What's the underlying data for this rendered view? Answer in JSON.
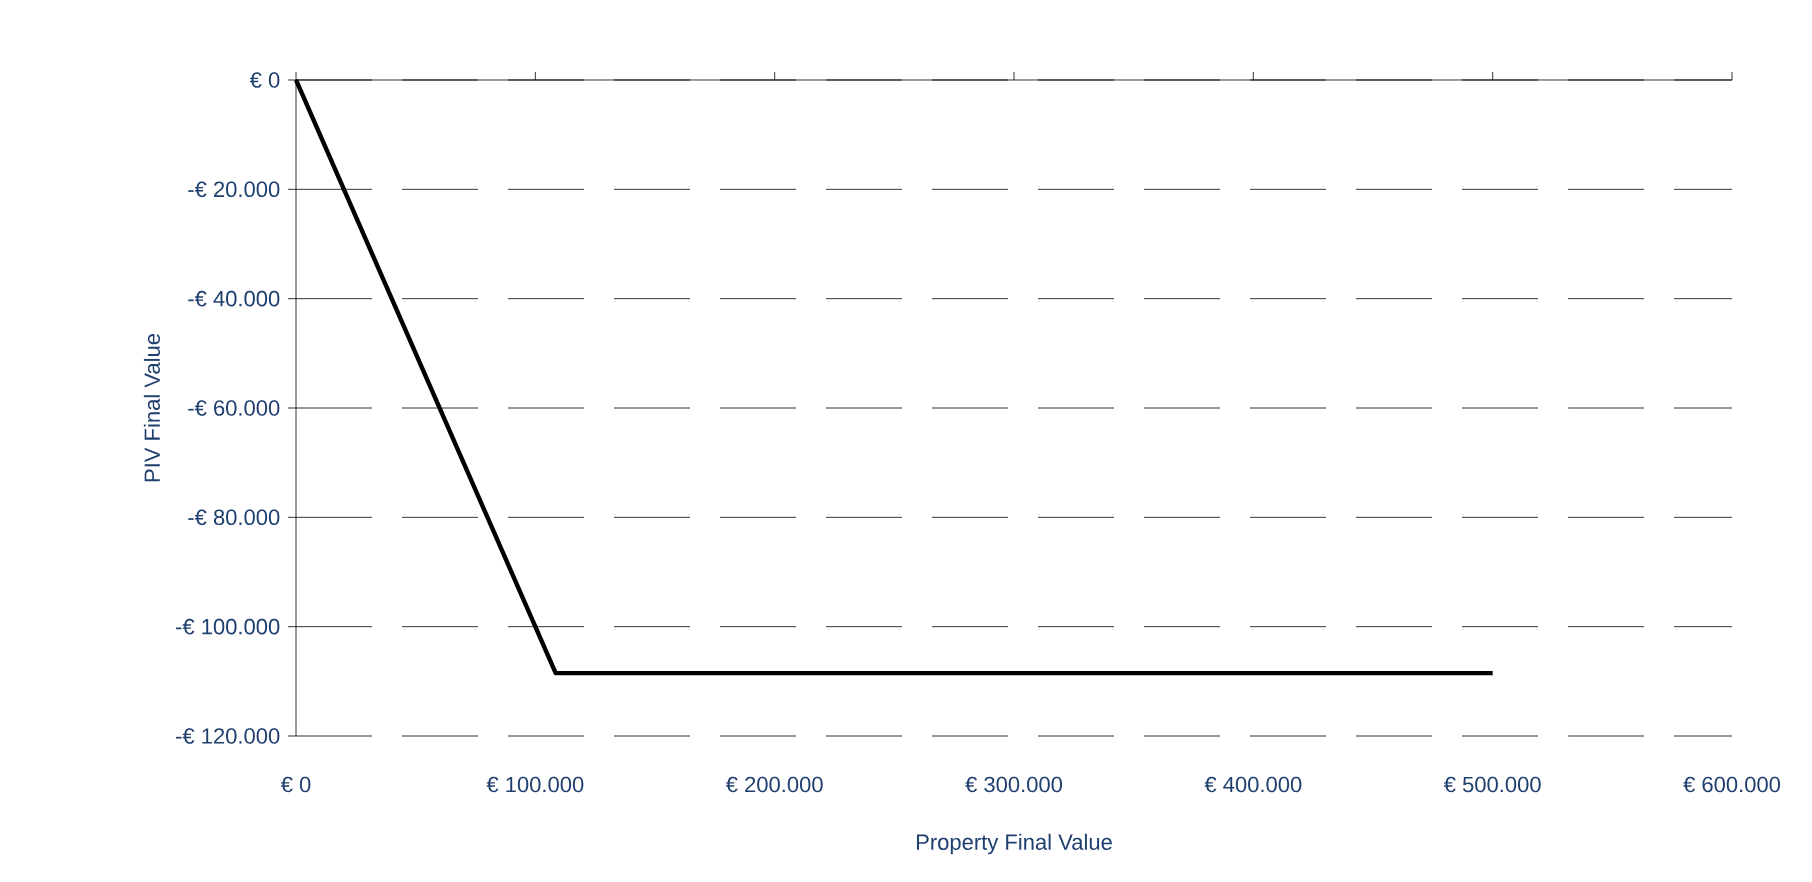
{
  "chart_data": {
    "type": "line",
    "xlabel": "Property Final Value",
    "ylabel": "PIV Final Value",
    "x": [
      0,
      108500,
      500000
    ],
    "series": [
      {
        "color": "#000000",
        "values": [
          0,
          -108500,
          -108500
        ]
      }
    ],
    "xlim": [
      0,
      600000
    ],
    "xticks": [
      {
        "value": 0,
        "label": "€ 0"
      },
      {
        "value": 100000,
        "label": "€ 100.000"
      },
      {
        "value": 200000,
        "label": "€ 200.000"
      },
      {
        "value": 300000,
        "label": "€ 300.000"
      },
      {
        "value": 400000,
        "label": "€ 400.000"
      },
      {
        "value": 500000,
        "label": "€ 500.000"
      },
      {
        "value": 600000,
        "label": "€ 600.000"
      }
    ],
    "ylim": [
      -120000,
      0
    ],
    "yticks": [
      {
        "value": -120000,
        "label": "-€ 120.000"
      },
      {
        "value": -100000,
        "label": "-€ 100.000"
      },
      {
        "value": -80000,
        "label": "-€ 80.000"
      },
      {
        "value": -60000,
        "label": "-€ 60.000"
      },
      {
        "value": -40000,
        "label": "-€ 40.000"
      },
      {
        "value": -20000,
        "label": "-€ 20.000"
      },
      {
        "value": 0,
        "label": "€ 0"
      }
    ],
    "grid": "y",
    "marker": "none",
    "line_style": "solid"
  }
}
